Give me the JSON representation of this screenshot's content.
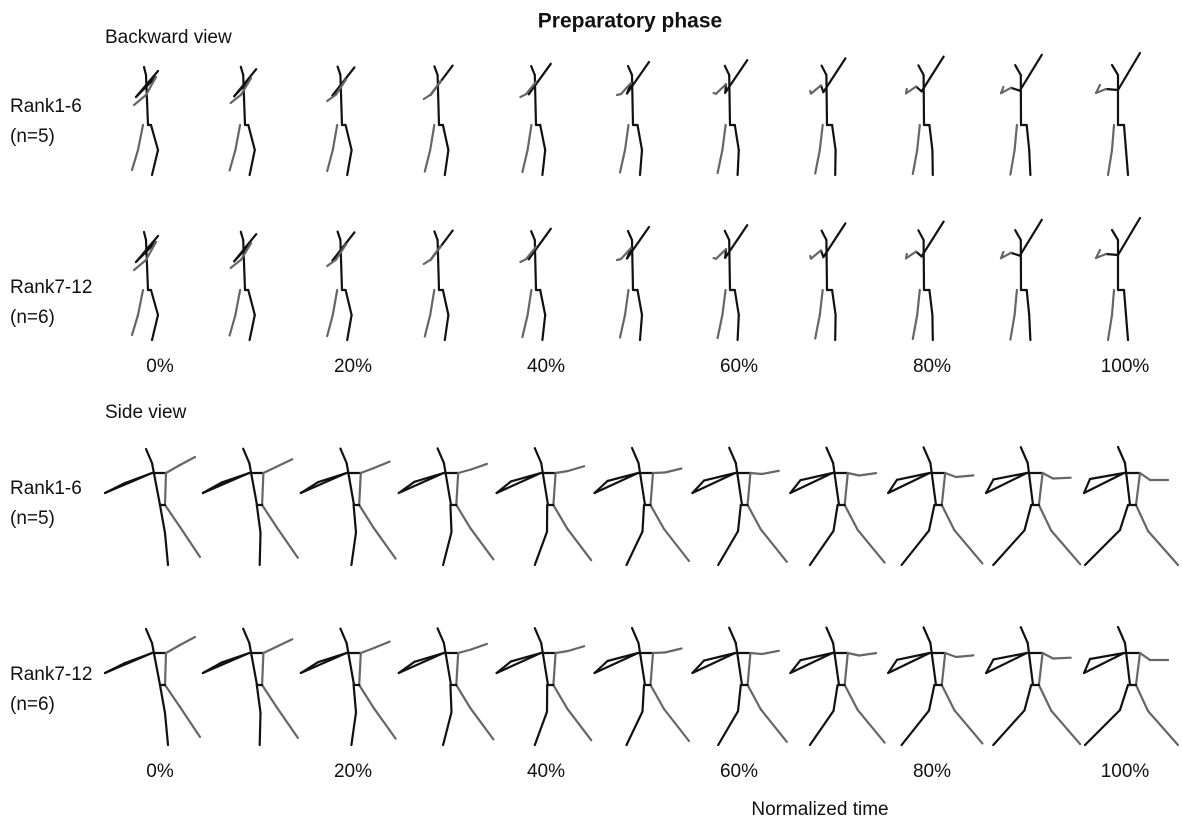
{
  "title": "Preparatory phase",
  "x_label": "Normalized time",
  "panels": [
    {
      "view": "Backward view",
      "rows": [
        {
          "group": "Rank1-6",
          "n": "(n=5)"
        },
        {
          "group": "Rank7-12",
          "n": "(n=6)"
        }
      ],
      "time_labels": [
        "0%",
        "20%",
        "40%",
        "60%",
        "80%",
        "100%"
      ]
    },
    {
      "view": "Side view",
      "rows": [
        {
          "group": "Rank1-6",
          "n": "(n=5)"
        },
        {
          "group": "Rank7-12",
          "n": "(n=6)"
        }
      ],
      "time_labels": [
        "0%",
        "20%",
        "40%",
        "60%",
        "80%",
        "100%"
      ]
    }
  ]
}
